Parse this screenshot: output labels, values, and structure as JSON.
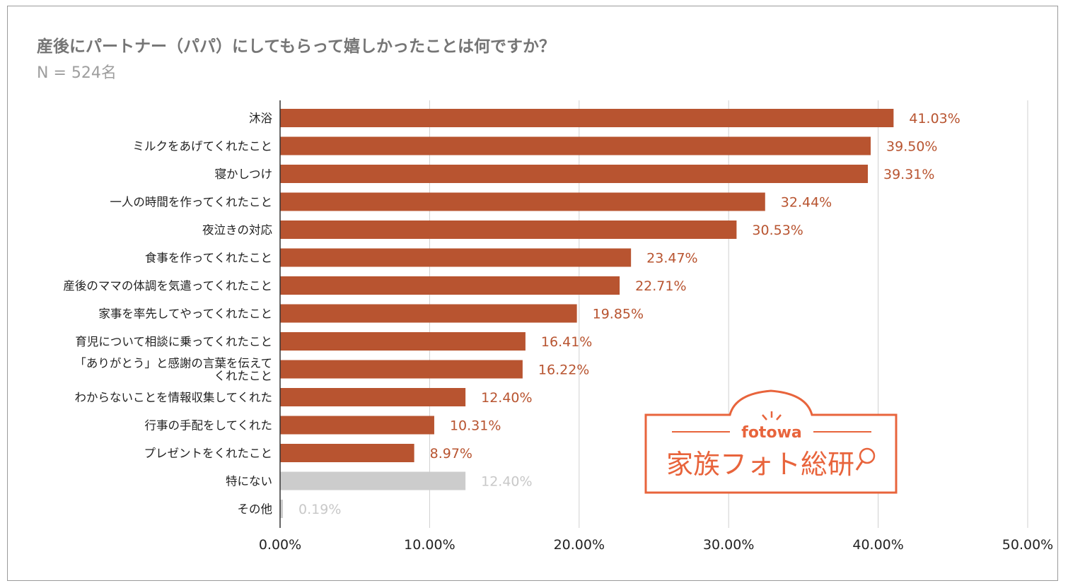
{
  "title": "産後にパートナー（パパ）にしてもらって嬉しかったことは何ですか？",
  "subtitle": "N = 524名",
  "colors": {
    "bar": "#b85430",
    "bar_muted": "#cccccc",
    "label": "#b85430",
    "label_muted": "#c8c8c8",
    "logo": "#e8643c"
  },
  "logo": {
    "brand": "fotowa",
    "name": "家族フォト総研"
  },
  "chart_data": {
    "type": "bar",
    "orientation": "horizontal",
    "categories": [
      "沐浴",
      "ミルクをあげてくれたこと",
      "寝かしつけ",
      "一人の時間を作ってくれたこと",
      "夜泣きの対応",
      "食事を作ってくれたこと",
      "産後のママの体調を気遣ってくれたこと",
      "家事を率先してやってくれたこと",
      "育児について相談に乗ってくれたこと",
      "「ありがとう」と感謝の言葉を伝えてくれたこと",
      "わからないことを情報収集してくれた",
      "行事の手配をしてくれた",
      "プレゼントをくれたこと",
      "特にない",
      "その他"
    ],
    "values": [
      41.03,
      39.5,
      39.31,
      32.44,
      30.53,
      23.47,
      22.71,
      19.85,
      16.41,
      16.22,
      12.4,
      10.31,
      8.97,
      12.4,
      0.19
    ],
    "value_labels": [
      "41.03%",
      "39.50%",
      "39.31%",
      "32.44%",
      "30.53%",
      "23.47%",
      "22.71%",
      "19.85%",
      "16.41%",
      "16.22%",
      "12.40%",
      "10.31%",
      "8.97%",
      "12.40%",
      "0.19%"
    ],
    "muted": [
      false,
      false,
      false,
      false,
      false,
      false,
      false,
      false,
      false,
      false,
      false,
      false,
      false,
      true,
      true
    ],
    "xlim": [
      0,
      50
    ],
    "xticks": [
      "0.00%",
      "10.00%",
      "20.00%",
      "30.00%",
      "40.00%",
      "50.00%"
    ],
    "grid": true,
    "xlabel": "",
    "ylabel": ""
  }
}
